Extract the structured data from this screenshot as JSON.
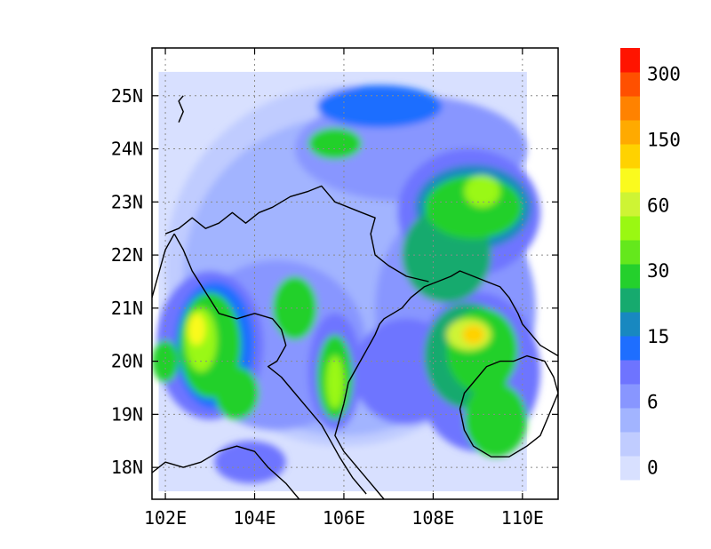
{
  "map": {
    "lon_range": [
      101.7,
      110.8
    ],
    "lat_range": [
      17.4,
      25.9
    ],
    "grid": "dotted",
    "x_ticks": [
      {
        "value": 102,
        "label": "102E"
      },
      {
        "value": 104,
        "label": "104E"
      },
      {
        "value": 106,
        "label": "106E"
      },
      {
        "value": 108,
        "label": "108E"
      },
      {
        "value": 110,
        "label": "110E"
      }
    ],
    "y_ticks": [
      {
        "value": 18,
        "label": "18N"
      },
      {
        "value": 19,
        "label": "19N"
      },
      {
        "value": 20,
        "label": "20N"
      },
      {
        "value": 21,
        "label": "21N"
      },
      {
        "value": 22,
        "label": "22N"
      },
      {
        "value": 23,
        "label": "23N"
      },
      {
        "value": 24,
        "label": "24N"
      },
      {
        "value": 25,
        "label": "25N"
      }
    ],
    "features": [
      {
        "name": "coastline-gulf-of-tonkin",
        "points": [
          [
            106.0,
            19.2
          ],
          [
            106.1,
            19.6
          ],
          [
            106.3,
            19.9
          ],
          [
            106.5,
            20.2
          ],
          [
            106.7,
            20.5
          ],
          [
            106.8,
            20.7
          ],
          [
            106.9,
            20.8
          ],
          [
            107.1,
            20.9
          ],
          [
            107.3,
            21.0
          ],
          [
            107.5,
            21.2
          ],
          [
            107.8,
            21.4
          ],
          [
            108.1,
            21.5
          ],
          [
            108.4,
            21.6
          ],
          [
            108.6,
            21.7
          ],
          [
            108.9,
            21.6
          ],
          [
            109.2,
            21.5
          ],
          [
            109.5,
            21.4
          ],
          [
            109.7,
            21.2
          ],
          [
            109.9,
            20.9
          ],
          [
            110.0,
            20.7
          ],
          [
            110.2,
            20.5
          ],
          [
            110.4,
            20.3
          ],
          [
            110.6,
            20.2
          ],
          [
            110.8,
            20.1
          ]
        ]
      },
      {
        "name": "coastline-vietnam-south",
        "points": [
          [
            106.0,
            19.2
          ],
          [
            105.9,
            18.9
          ],
          [
            105.8,
            18.6
          ],
          [
            106.0,
            18.3
          ],
          [
            106.2,
            18.1
          ],
          [
            106.4,
            17.9
          ],
          [
            106.6,
            17.7
          ],
          [
            106.8,
            17.5
          ],
          [
            106.9,
            17.4
          ]
        ]
      },
      {
        "name": "hainan-island",
        "points": [
          [
            108.6,
            19.1
          ],
          [
            108.7,
            19.4
          ],
          [
            108.9,
            19.6
          ],
          [
            109.2,
            19.9
          ],
          [
            109.5,
            20.0
          ],
          [
            109.8,
            20.0
          ],
          [
            110.1,
            20.1
          ],
          [
            110.5,
            20.0
          ],
          [
            110.7,
            19.7
          ],
          [
            110.8,
            19.4
          ],
          [
            110.6,
            19.0
          ],
          [
            110.4,
            18.6
          ],
          [
            110.1,
            18.4
          ],
          [
            109.7,
            18.2
          ],
          [
            109.3,
            18.2
          ],
          [
            108.9,
            18.4
          ],
          [
            108.7,
            18.7
          ],
          [
            108.6,
            19.1
          ]
        ]
      },
      {
        "name": "border-china-vietnam",
        "points": [
          [
            102.0,
            22.4
          ],
          [
            102.3,
            22.5
          ],
          [
            102.6,
            22.7
          ],
          [
            102.9,
            22.5
          ],
          [
            103.2,
            22.6
          ],
          [
            103.5,
            22.8
          ],
          [
            103.8,
            22.6
          ],
          [
            104.1,
            22.8
          ],
          [
            104.4,
            22.9
          ],
          [
            104.8,
            23.1
          ],
          [
            105.2,
            23.2
          ],
          [
            105.5,
            23.3
          ],
          [
            105.8,
            23.0
          ],
          [
            106.1,
            22.9
          ],
          [
            106.4,
            22.8
          ],
          [
            106.7,
            22.7
          ],
          [
            106.6,
            22.4
          ],
          [
            106.7,
            22.0
          ],
          [
            107.0,
            21.8
          ],
          [
            107.4,
            21.6
          ],
          [
            107.9,
            21.5
          ]
        ]
      },
      {
        "name": "border-vietnam-laos",
        "points": [
          [
            102.2,
            22.4
          ],
          [
            102.4,
            22.1
          ],
          [
            102.6,
            21.7
          ],
          [
            102.9,
            21.3
          ],
          [
            103.2,
            20.9
          ],
          [
            103.6,
            20.8
          ],
          [
            104.0,
            20.9
          ],
          [
            104.4,
            20.8
          ],
          [
            104.6,
            20.6
          ],
          [
            104.7,
            20.3
          ],
          [
            104.5,
            20.0
          ],
          [
            104.3,
            19.9
          ],
          [
            104.6,
            19.7
          ],
          [
            104.9,
            19.4
          ],
          [
            105.2,
            19.1
          ],
          [
            105.5,
            18.8
          ],
          [
            105.7,
            18.5
          ],
          [
            105.9,
            18.2
          ],
          [
            106.2,
            17.8
          ],
          [
            106.5,
            17.5
          ]
        ]
      },
      {
        "name": "border-laos-china",
        "points": [
          [
            101.7,
            21.2
          ],
          [
            101.8,
            21.5
          ],
          [
            101.9,
            21.8
          ],
          [
            102.0,
            22.1
          ],
          [
            102.2,
            22.4
          ]
        ]
      },
      {
        "name": "border-laos-thailand",
        "points": [
          [
            101.7,
            17.9
          ],
          [
            102.0,
            18.1
          ],
          [
            102.4,
            18.0
          ],
          [
            102.8,
            18.1
          ],
          [
            103.2,
            18.3
          ],
          [
            103.6,
            18.4
          ],
          [
            104.0,
            18.3
          ],
          [
            104.3,
            18.0
          ],
          [
            104.7,
            17.7
          ],
          [
            105.0,
            17.4
          ]
        ]
      },
      {
        "name": "border-china-laos-north",
        "points": [
          [
            102.3,
            24.5
          ],
          [
            102.4,
            24.7
          ],
          [
            102.3,
            24.9
          ],
          [
            102.4,
            25.0
          ]
        ]
      }
    ]
  },
  "colorbar": {
    "colors": [
      "#ffffff",
      "#d8e0ff",
      "#c0ccff",
      "#a2b4ff",
      "#8896ff",
      "#6e74ff",
      "#1e6eff",
      "#1888c0",
      "#16aa6e",
      "#24d02c",
      "#64e81c",
      "#9af812",
      "#cef434",
      "#fafa1e",
      "#ffd200",
      "#ffaa00",
      "#ff8200",
      "#ff5000",
      "#ff1400"
    ],
    "labels": [
      {
        "index": 0,
        "text": "0"
      },
      {
        "index": 2,
        "text": "6"
      },
      {
        "index": 4,
        "text": "15"
      },
      {
        "index": 6,
        "text": "30"
      },
      {
        "index": 8,
        "text": "60"
      },
      {
        "index": 10,
        "text": "150"
      },
      {
        "index": 12,
        "text": "300"
      }
    ]
  }
}
